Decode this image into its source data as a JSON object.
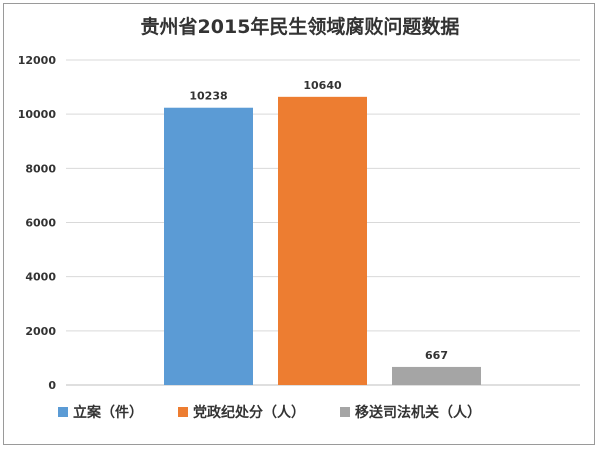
{
  "chart_data": {
    "type": "bar",
    "title": "贵州省2015年民生领域腐败问题数据",
    "xlabel": "",
    "ylabel": "",
    "ylim": [
      0,
      12000
    ],
    "yticks": [
      0,
      2000,
      4000,
      6000,
      8000,
      10000,
      12000
    ],
    "grid": true,
    "legend": "bottom",
    "series": [
      {
        "name": "立案（件）",
        "value": 10238,
        "color": "#5b9bd5"
      },
      {
        "name": "党政纪处分（人）",
        "value": 10640,
        "color": "#ed7d31"
      },
      {
        "name": "移送司法机关（人）",
        "value": 667,
        "color": "#a5a5a5"
      }
    ]
  }
}
